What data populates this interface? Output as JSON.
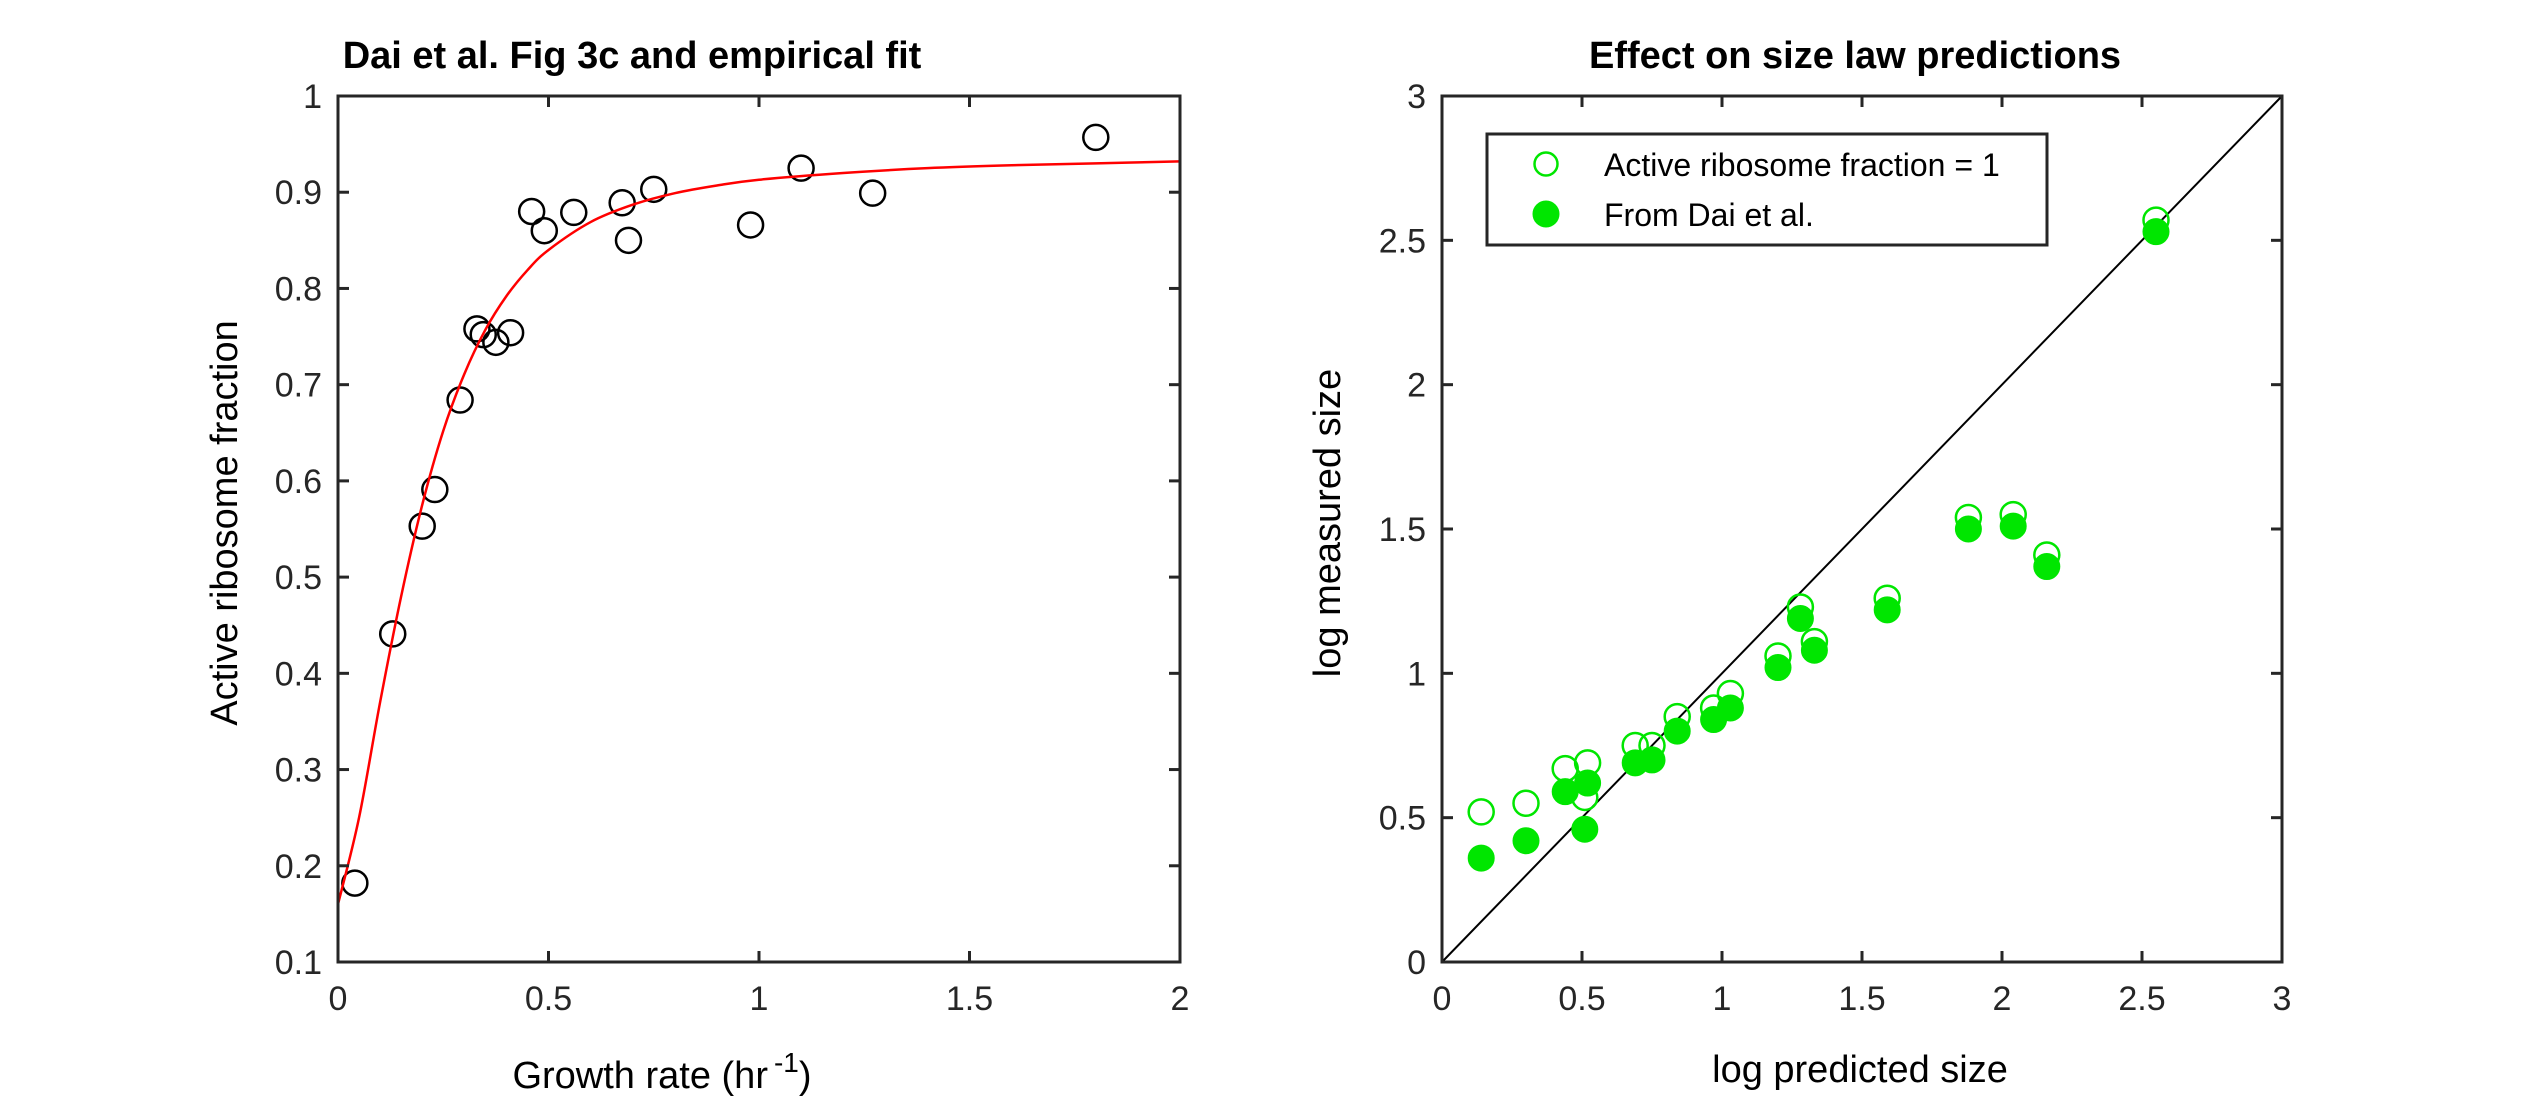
{
  "chart_data": [
    {
      "type": "scatter",
      "title": "Dai et al. Fig 3c and empirical fit",
      "xlabel_main": "Growth rate (hr",
      "xlabel_sup": "-1",
      "xlabel_end": ")",
      "ylabel": "Active ribosome fraction",
      "xlim": [
        0,
        2
      ],
      "ylim": [
        0.1,
        1
      ],
      "xticks": [
        0,
        0.5,
        1,
        1.5,
        2
      ],
      "xtick_labels": [
        "0",
        "0.5",
        "1",
        "1.5",
        "2"
      ],
      "yticks": [
        0.1,
        0.2,
        0.3,
        0.4,
        0.5,
        0.6,
        0.7,
        0.8,
        0.9,
        1
      ],
      "ytick_labels": [
        "0.1",
        "0.2",
        "0.3",
        "0.4",
        "0.5",
        "0.6",
        "0.7",
        "0.8",
        "0.9",
        "1"
      ],
      "grid": false,
      "series": [
        {
          "marker": "open-circle",
          "color": "#000000",
          "points": [
            [
              0.04,
              0.182
            ],
            [
              0.13,
              0.441
            ],
            [
              0.2,
              0.553
            ],
            [
              0.23,
              0.591
            ],
            [
              0.29,
              0.684
            ],
            [
              0.33,
              0.758
            ],
            [
              0.345,
              0.752
            ],
            [
              0.375,
              0.744
            ],
            [
              0.41,
              0.754
            ],
            [
              0.46,
              0.88
            ],
            [
              0.49,
              0.86
            ],
            [
              0.56,
              0.879
            ],
            [
              0.675,
              0.889
            ],
            [
              0.69,
              0.85
            ],
            [
              0.75,
              0.903
            ],
            [
              0.98,
              0.866
            ],
            [
              1.1,
              0.925
            ],
            [
              1.27,
              0.899
            ],
            [
              1.8,
              0.957
            ]
          ]
        },
        {
          "marker": "line",
          "color": "#ff0000",
          "curve": "fit",
          "x": [
            0,
            0.05,
            0.1,
            0.15,
            0.2,
            0.25,
            0.3,
            0.35,
            0.4,
            0.45,
            0.5,
            0.6,
            0.7,
            0.8,
            0.9,
            1.0,
            1.2,
            1.4,
            1.6,
            1.8,
            2.0
          ],
          "y": [
            0.16,
            0.25,
            0.37,
            0.48,
            0.575,
            0.652,
            0.711,
            0.757,
            0.792,
            0.819,
            0.84,
            0.869,
            0.887,
            0.899,
            0.907,
            0.913,
            0.92,
            0.925,
            0.928,
            0.93,
            0.932
          ]
        }
      ]
    },
    {
      "type": "scatter",
      "title": "Effect on size law predictions",
      "xlabel": "log predicted size",
      "ylabel": "log measured size",
      "xlim": [
        0,
        3
      ],
      "ylim": [
        0,
        3
      ],
      "xticks": [
        0,
        0.5,
        1,
        1.5,
        2,
        2.5,
        3
      ],
      "xtick_labels": [
        "0",
        "0.5",
        "1",
        "1.5",
        "2",
        "2.5",
        "3"
      ],
      "yticks": [
        0,
        0.5,
        1,
        1.5,
        2,
        2.5,
        3
      ],
      "ytick_labels": [
        "0",
        "0.5",
        "1",
        "1.5",
        "2",
        "2.5",
        "3"
      ],
      "grid": false,
      "legend_position": "top-left",
      "reference_line": {
        "from": [
          0,
          0
        ],
        "to": [
          3,
          3
        ],
        "color": "#000000"
      },
      "series": [
        {
          "name": "Active ribosome fraction = 1",
          "marker": "open-circle",
          "color": "#00e600",
          "points": [
            [
              0.14,
              0.52
            ],
            [
              0.3,
              0.55
            ],
            [
              0.44,
              0.67
            ],
            [
              0.52,
              0.69
            ],
            [
              0.51,
              0.57
            ],
            [
              0.69,
              0.75
            ],
            [
              0.75,
              0.75
            ],
            [
              0.84,
              0.85
            ],
            [
              0.97,
              0.88
            ],
            [
              1.03,
              0.93
            ],
            [
              1.2,
              1.06
            ],
            [
              1.28,
              1.23
            ],
            [
              1.33,
              1.11
            ],
            [
              1.59,
              1.26
            ],
            [
              1.88,
              1.54
            ],
            [
              2.04,
              1.55
            ],
            [
              2.16,
              1.41
            ],
            [
              2.55,
              2.57
            ]
          ]
        },
        {
          "name": "From Dai et al.",
          "marker": "filled-circle",
          "color": "#00e600",
          "points": [
            [
              0.14,
              0.36
            ],
            [
              0.3,
              0.42
            ],
            [
              0.44,
              0.59
            ],
            [
              0.52,
              0.62
            ],
            [
              0.51,
              0.46
            ],
            [
              0.69,
              0.69
            ],
            [
              0.75,
              0.7
            ],
            [
              0.84,
              0.8
            ],
            [
              0.97,
              0.84
            ],
            [
              1.03,
              0.88
            ],
            [
              1.2,
              1.02
            ],
            [
              1.28,
              1.19
            ],
            [
              1.33,
              1.08
            ],
            [
              1.59,
              1.22
            ],
            [
              1.88,
              1.5
            ],
            [
              2.04,
              1.51
            ],
            [
              2.16,
              1.37
            ],
            [
              2.55,
              2.53
            ]
          ]
        }
      ]
    }
  ]
}
